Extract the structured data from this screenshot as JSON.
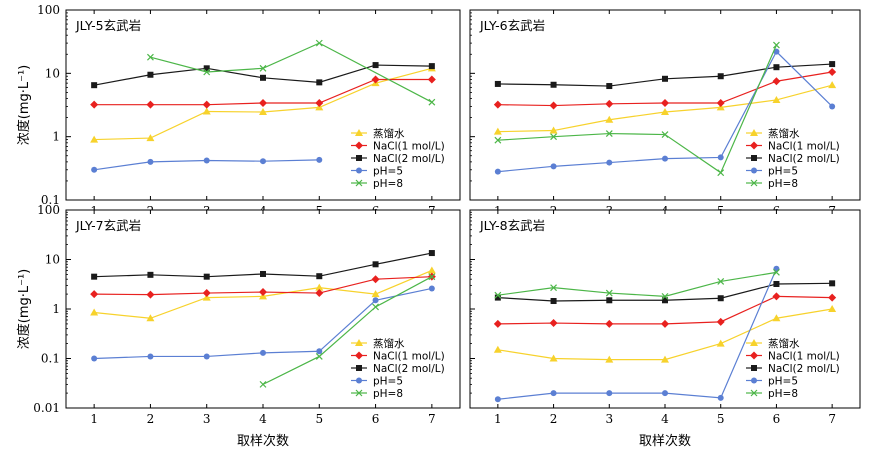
{
  "shared": {
    "ylabel": "浓度(mg·L⁻¹)",
    "xlabel": "取样次数",
    "x_ticks": [
      "1",
      "2",
      "3",
      "4",
      "5",
      "6",
      "7"
    ],
    "y_ticks": [
      "0.01",
      "0.1",
      "1",
      "10",
      "100"
    ]
  },
  "legend": [
    {
      "name": "蒸馏水",
      "color": "#f7d22c",
      "marker": "triangle"
    },
    {
      "name": "NaCl(1 mol/L)",
      "color": "#e8211f",
      "marker": "diamond"
    },
    {
      "name": "NaCl(2 mol/L)",
      "color": "#1a1a1a",
      "marker": "square"
    },
    {
      "name": "pH=5",
      "color": "#5b7fd3",
      "marker": "circle"
    },
    {
      "name": "pH=8",
      "color": "#4cb648",
      "marker": "x"
    }
  ],
  "chart_data": [
    {
      "type": "line",
      "title": "JLY-5玄武岩",
      "x": [
        1,
        2,
        3,
        4,
        5,
        6,
        7
      ],
      "yscale": "log",
      "ylim": [
        0.1,
        100
      ],
      "series": [
        {
          "name": "蒸馏水",
          "x": [
            1,
            2,
            3,
            4,
            5,
            6,
            7
          ],
          "values": [
            0.9,
            0.95,
            2.5,
            2.45,
            2.9,
            7.0,
            12.0
          ]
        },
        {
          "name": "NaCl(1 mol/L)",
          "x": [
            1,
            2,
            3,
            4,
            5,
            6,
            7
          ],
          "values": [
            3.2,
            3.2,
            3.2,
            3.4,
            3.4,
            8.0,
            8.0
          ]
        },
        {
          "name": "NaCl(2 mol/L)",
          "x": [
            1,
            2,
            3,
            4,
            5,
            6,
            7
          ],
          "values": [
            6.5,
            9.5,
            12.0,
            8.5,
            7.2,
            13.5,
            13.0
          ]
        },
        {
          "name": "pH=5",
          "x": [
            1,
            2,
            3,
            4,
            5
          ],
          "values": [
            0.3,
            0.4,
            0.42,
            0.41,
            0.43
          ]
        },
        {
          "name": "pH=8",
          "x": [
            2,
            3,
            4,
            5,
            7
          ],
          "values": [
            18.0,
            10.5,
            12.0,
            30.0,
            3.5
          ]
        }
      ]
    },
    {
      "type": "line",
      "title": "JLY-6玄武岩",
      "x": [
        1,
        2,
        3,
        4,
        5,
        6,
        7
      ],
      "yscale": "log",
      "ylim": [
        0.1,
        100
      ],
      "series": [
        {
          "name": "蒸馏水",
          "x": [
            1,
            2,
            3,
            4,
            5,
            6,
            7
          ],
          "values": [
            1.2,
            1.25,
            1.85,
            2.45,
            2.9,
            3.8,
            6.5
          ]
        },
        {
          "name": "NaCl(1 mol/L)",
          "x": [
            1,
            2,
            3,
            4,
            5,
            6,
            7
          ],
          "values": [
            3.2,
            3.1,
            3.3,
            3.4,
            3.4,
            7.5,
            10.5
          ]
        },
        {
          "name": "NaCl(2 mol/L)",
          "x": [
            1,
            2,
            3,
            4,
            5,
            6,
            7
          ],
          "values": [
            6.8,
            6.6,
            6.3,
            8.2,
            9.0,
            12.5,
            14.0
          ]
        },
        {
          "name": "pH=5",
          "x": [
            1,
            2,
            3,
            4,
            5,
            6,
            7
          ],
          "values": [
            0.28,
            0.34,
            0.39,
            0.45,
            0.47,
            22.0,
            3.0
          ]
        },
        {
          "name": "pH=8",
          "x": [
            1,
            2,
            3,
            4,
            5,
            6
          ],
          "values": [
            0.88,
            1.0,
            1.12,
            1.08,
            0.27,
            28.0
          ]
        }
      ]
    },
    {
      "type": "line",
      "title": "JLY-7玄武岩",
      "x": [
        1,
        2,
        3,
        4,
        5,
        6,
        7
      ],
      "yscale": "log",
      "ylim": [
        0.01,
        100
      ],
      "series": [
        {
          "name": "蒸馏水",
          "x": [
            1,
            2,
            3,
            4,
            5,
            6,
            7
          ],
          "values": [
            0.85,
            0.65,
            1.7,
            1.8,
            2.7,
            2.0,
            6.0
          ]
        },
        {
          "name": "NaCl(1 mol/L)",
          "x": [
            1,
            2,
            3,
            4,
            5,
            6,
            7
          ],
          "values": [
            2.0,
            1.95,
            2.1,
            2.2,
            2.1,
            4.0,
            4.5
          ]
        },
        {
          "name": "NaCl(2 mol/L)",
          "x": [
            1,
            2,
            3,
            4,
            5,
            6,
            7
          ],
          "values": [
            4.5,
            4.9,
            4.5,
            5.1,
            4.6,
            8.0,
            13.5
          ]
        },
        {
          "name": "pH=5",
          "x": [
            1,
            2,
            3,
            4,
            5,
            6,
            7
          ],
          "values": [
            0.1,
            0.11,
            0.11,
            0.13,
            0.14,
            1.5,
            2.6
          ]
        },
        {
          "name": "pH=8",
          "x": [
            4,
            5,
            6,
            7
          ],
          "values": [
            0.03,
            0.11,
            1.1,
            4.5
          ]
        }
      ]
    },
    {
      "type": "line",
      "title": "JLY-8玄武岩",
      "x": [
        1,
        2,
        3,
        4,
        5,
        6,
        7
      ],
      "yscale": "log",
      "ylim": [
        0.01,
        100
      ],
      "series": [
        {
          "name": "蒸馏水",
          "x": [
            1,
            2,
            3,
            4,
            5,
            6,
            7
          ],
          "values": [
            0.15,
            0.1,
            0.095,
            0.095,
            0.2,
            0.65,
            1.0
          ]
        },
        {
          "name": "NaCl(1 mol/L)",
          "x": [
            1,
            2,
            3,
            4,
            5,
            6,
            7
          ],
          "values": [
            0.5,
            0.52,
            0.5,
            0.5,
            0.55,
            1.8,
            1.7
          ]
        },
        {
          "name": "NaCl(2 mol/L)",
          "x": [
            1,
            2,
            3,
            4,
            5,
            6,
            7
          ],
          "values": [
            1.7,
            1.45,
            1.5,
            1.5,
            1.65,
            3.2,
            3.3
          ]
        },
        {
          "name": "pH=5",
          "x": [
            1,
            2,
            3,
            4,
            5,
            6
          ],
          "values": [
            0.015,
            0.02,
            0.02,
            0.02,
            0.016,
            6.5
          ]
        },
        {
          "name": "pH=8",
          "x": [
            1,
            2,
            3,
            4,
            5,
            6
          ],
          "values": [
            1.9,
            2.7,
            2.1,
            1.8,
            3.6,
            5.5
          ]
        }
      ]
    }
  ]
}
